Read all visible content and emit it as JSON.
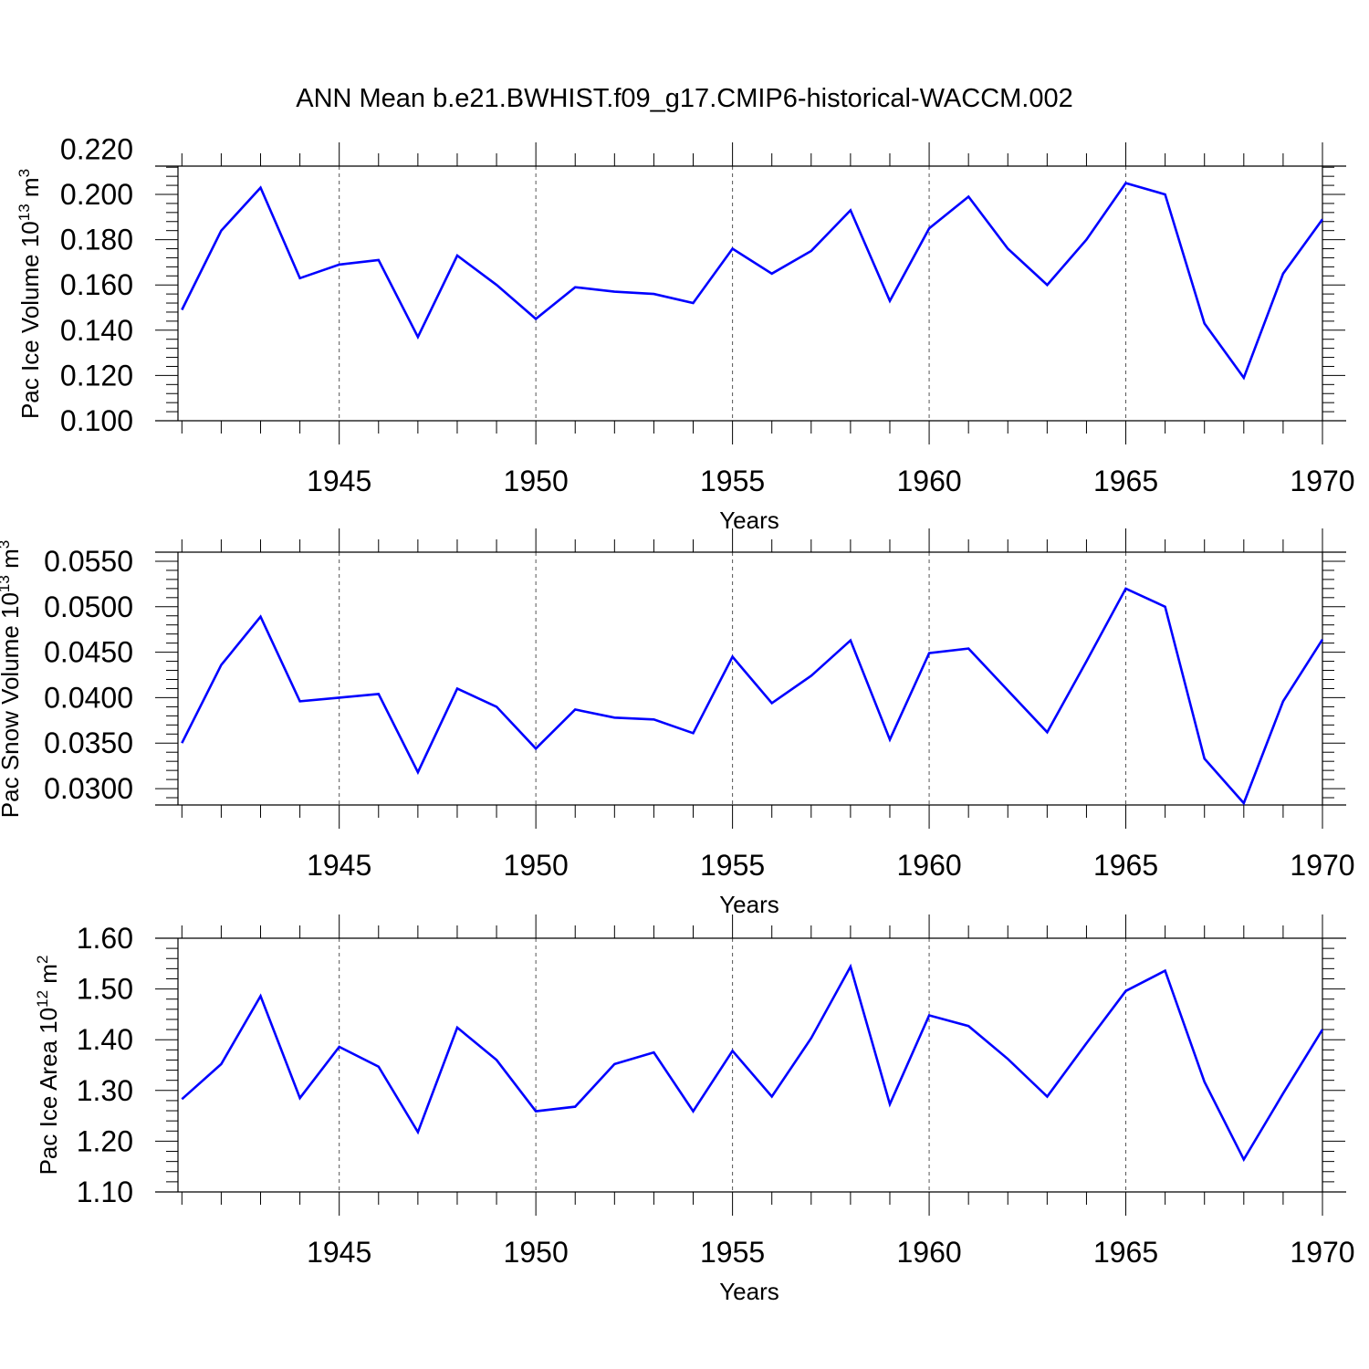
{
  "title": "ANN Mean b.e21.BWHIST.f09_g17.CMIP6-historical-WACCM.002",
  "line_color": "#0000ff",
  "chart_data": [
    {
      "type": "line",
      "ylabel": "Pac Ice Volume 10",
      "yunit": {
        "sup": "13",
        "unit": " m",
        "unit_sup": "3"
      },
      "xlabel": "Years",
      "xlim": [
        1940.9,
        1970
      ],
      "ylim": [
        0.1,
        0.2125
      ],
      "xticks": [
        1945,
        1950,
        1955,
        1960,
        1965,
        1970
      ],
      "yticks": [
        0.1,
        0.12,
        0.14,
        0.16,
        0.18,
        0.2,
        0.22
      ],
      "ytick_labels": [
        "0.100",
        "0.120",
        "0.140",
        "0.160",
        "0.180",
        "0.200",
        "0.220"
      ],
      "grid": "x-dashed",
      "x": [
        1941,
        1942,
        1943,
        1944,
        1945,
        1946,
        1947,
        1948,
        1949,
        1950,
        1951,
        1952,
        1953,
        1954,
        1955,
        1956,
        1957,
        1958,
        1959,
        1960,
        1961,
        1962,
        1963,
        1964,
        1965,
        1966,
        1967,
        1968,
        1969,
        1970
      ],
      "series": [
        {
          "values": [
            0.149,
            0.184,
            0.203,
            0.163,
            0.169,
            0.171,
            0.137,
            0.173,
            0.16,
            0.145,
            0.159,
            0.157,
            0.156,
            0.152,
            0.176,
            0.165,
            0.175,
            0.193,
            0.153,
            0.185,
            0.199,
            0.176,
            0.16,
            0.18,
            0.205,
            0.2,
            0.143,
            0.119,
            0.165,
            0.189
          ]
        }
      ]
    },
    {
      "type": "line",
      "ylabel": "Pac Snow Volume 10",
      "yunit": {
        "sup": "13",
        "unit": " m",
        "unit_sup": "3"
      },
      "xlabel": "Years",
      "xlim": [
        1940.9,
        1970
      ],
      "ylim": [
        0.0282,
        0.056
      ],
      "xticks": [
        1945,
        1950,
        1955,
        1960,
        1965,
        1970
      ],
      "yticks": [
        0.03,
        0.035,
        0.04,
        0.045,
        0.05,
        0.055
      ],
      "ytick_labels": [
        "0.0300",
        "0.0350",
        "0.0400",
        "0.0450",
        "0.0500",
        "0.0550"
      ],
      "grid": "x-dashed",
      "x": [
        1941,
        1942,
        1943,
        1944,
        1945,
        1946,
        1947,
        1948,
        1949,
        1950,
        1951,
        1952,
        1953,
        1954,
        1955,
        1956,
        1957,
        1958,
        1959,
        1960,
        1961,
        1962,
        1963,
        1964,
        1965,
        1966,
        1967,
        1968,
        1969,
        1970
      ],
      "series": [
        {
          "values": [
            0.035,
            0.0436,
            0.0489,
            0.0396,
            0.04,
            0.0404,
            0.0318,
            0.041,
            0.039,
            0.0344,
            0.0387,
            0.0378,
            0.0376,
            0.0361,
            0.0445,
            0.0394,
            0.0424,
            0.0463,
            0.0354,
            0.0449,
            0.0454,
            0.0408,
            0.0362,
            0.044,
            0.052,
            0.05,
            0.0333,
            0.0284,
            0.0396,
            0.0464
          ]
        }
      ]
    },
    {
      "type": "line",
      "ylabel": "Pac Ice Area 10",
      "yunit": {
        "sup": "12",
        "unit": " m",
        "unit_sup": "2"
      },
      "xlabel": "Years",
      "xlim": [
        1940.9,
        1970
      ],
      "ylim": [
        1.1,
        1.6
      ],
      "xticks": [
        1945,
        1950,
        1955,
        1960,
        1965,
        1970
      ],
      "yticks": [
        1.1,
        1.2,
        1.3,
        1.4,
        1.5,
        1.6
      ],
      "ytick_labels": [
        "1.10",
        "1.20",
        "1.30",
        "1.40",
        "1.50",
        "1.60"
      ],
      "grid": "x-dashed",
      "x": [
        1941,
        1942,
        1943,
        1944,
        1945,
        1946,
        1947,
        1948,
        1949,
        1950,
        1951,
        1952,
        1953,
        1954,
        1955,
        1956,
        1957,
        1958,
        1959,
        1960,
        1961,
        1962,
        1963,
        1964,
        1965,
        1966,
        1967,
        1968,
        1969,
        1970
      ],
      "series": [
        {
          "values": [
            1.283,
            1.352,
            1.486,
            1.285,
            1.386,
            1.347,
            1.218,
            1.424,
            1.36,
            1.259,
            1.268,
            1.352,
            1.375,
            1.259,
            1.378,
            1.288,
            1.403,
            1.544,
            1.273,
            1.448,
            1.427,
            1.362,
            1.288,
            1.393,
            1.496,
            1.536,
            1.317,
            1.164,
            1.294,
            1.42
          ]
        }
      ]
    }
  ]
}
